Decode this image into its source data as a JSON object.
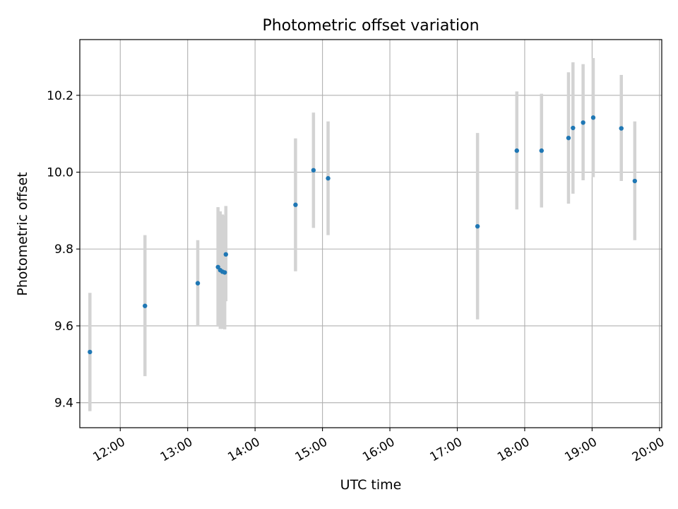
{
  "chart_data": {
    "type": "scatter",
    "title": "Photometric offset variation",
    "xlabel": "UTC time",
    "ylabel": "Photometric offset",
    "xlim": [
      "11:24",
      "20:02"
    ],
    "ylim": [
      9.335,
      10.345
    ],
    "grid": true,
    "x_ticks": [
      "12:00",
      "13:00",
      "14:00",
      "15:00",
      "16:00",
      "17:00",
      "18:00",
      "19:00",
      "20:00"
    ],
    "y_ticks": [
      "9.4",
      "9.6",
      "9.8",
      "10.0",
      "10.2"
    ],
    "series": [
      {
        "marker_color": "#1f77b4",
        "errorbar_color": "#d3d3d3",
        "points": [
          {
            "t": "11:33",
            "y": 9.532,
            "ylow": 9.378,
            "yhigh": 9.686
          },
          {
            "t": "12:22",
            "y": 9.652,
            "ylow": 9.469,
            "yhigh": 9.836
          },
          {
            "t": "13:09",
            "y": 9.711,
            "ylow": 9.6,
            "yhigh": 9.823
          },
          {
            "t": "13:27",
            "y": 9.753,
            "ylow": 9.598,
            "yhigh": 9.909
          },
          {
            "t": "13:29",
            "y": 9.745,
            "ylow": 9.592,
            "yhigh": 9.898
          },
          {
            "t": "13:31",
            "y": 9.741,
            "ylow": 9.592,
            "yhigh": 9.89
          },
          {
            "t": "13:33",
            "y": 9.739,
            "ylow": 9.591,
            "yhigh": 9.887
          },
          {
            "t": "13:34",
            "y": 9.786,
            "ylow": 9.664,
            "yhigh": 9.912
          },
          {
            "t": "14:36",
            "y": 9.915,
            "ylow": 9.742,
            "yhigh": 10.088
          },
          {
            "t": "14:52",
            "y": 10.005,
            "ylow": 9.855,
            "yhigh": 10.155
          },
          {
            "t": "15:05",
            "y": 9.984,
            "ylow": 9.836,
            "yhigh": 10.132
          },
          {
            "t": "17:18",
            "y": 9.859,
            "ylow": 9.617,
            "yhigh": 10.102
          },
          {
            "t": "17:53",
            "y": 10.056,
            "ylow": 9.903,
            "yhigh": 10.21
          },
          {
            "t": "18:15",
            "y": 10.056,
            "ylow": 9.908,
            "yhigh": 10.204
          },
          {
            "t": "18:39",
            "y": 10.089,
            "ylow": 9.918,
            "yhigh": 10.26
          },
          {
            "t": "18:43",
            "y": 10.115,
            "ylow": 9.944,
            "yhigh": 10.286
          },
          {
            "t": "18:52",
            "y": 10.129,
            "ylow": 9.979,
            "yhigh": 10.281
          },
          {
            "t": "19:01",
            "y": 10.142,
            "ylow": 9.987,
            "yhigh": 10.297
          },
          {
            "t": "19:26",
            "y": 10.114,
            "ylow": 9.977,
            "yhigh": 10.253
          },
          {
            "t": "19:38",
            "y": 9.977,
            "ylow": 9.823,
            "yhigh": 10.132
          }
        ]
      }
    ]
  }
}
